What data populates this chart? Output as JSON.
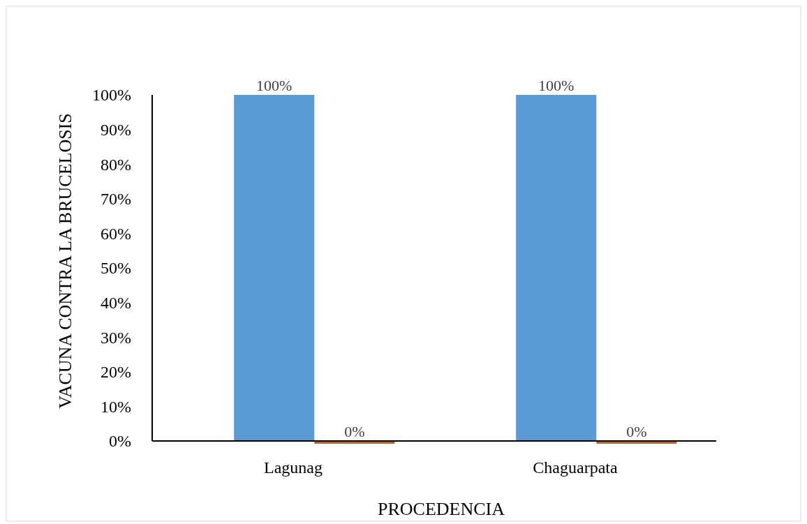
{
  "chart_data": {
    "type": "bar",
    "xlabel": "PROCEDENCIA",
    "ylabel": "VACUNA CONTRA LA BRUCELOSIS",
    "categories": [
      "Lagunag",
      "Chaguarpata"
    ],
    "series": [
      {
        "color": "#5b9bd5",
        "values": [
          100,
          100
        ],
        "value_labels": [
          "100%",
          "100%"
        ]
      },
      {
        "color": "#c0632a",
        "values": [
          0,
          0
        ],
        "value_labels": [
          "0%",
          "0%"
        ]
      }
    ],
    "ylim": [
      0,
      100
    ],
    "yticks": [
      {
        "value": 0,
        "label": "0%"
      },
      {
        "value": 10,
        "label": "10%"
      },
      {
        "value": 20,
        "label": "20%"
      },
      {
        "value": 30,
        "label": "30%"
      },
      {
        "value": 40,
        "label": "40%"
      },
      {
        "value": 50,
        "label": "50%"
      },
      {
        "value": 60,
        "label": "60%"
      },
      {
        "value": 70,
        "label": "70%"
      },
      {
        "value": 80,
        "label": "80%"
      },
      {
        "value": 90,
        "label": "90%"
      },
      {
        "value": 100,
        "label": "100%"
      }
    ],
    "grid": false
  }
}
